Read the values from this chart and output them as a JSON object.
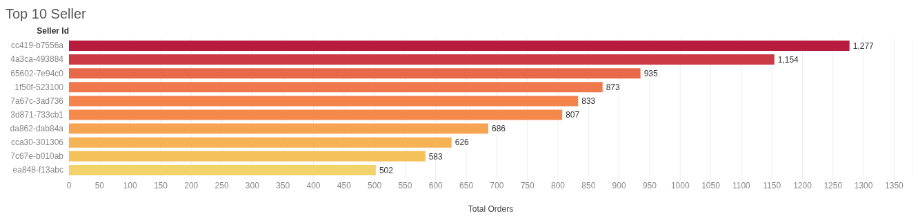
{
  "chart_data": {
    "type": "bar",
    "orientation": "horizontal",
    "title": "Top 10 Seller",
    "ylabel": "Seller Id",
    "xlabel": "Total Orders",
    "categories": [
      "cc419-b7556a",
      "4a3ca-493884",
      "65602-7e94c0",
      "1f50f-523100",
      "7a67c-3ad736",
      "3d871-733cb1",
      "da862-dab84a",
      "cca30-301306",
      "7c67e-b010ab",
      "ea848-f13abc"
    ],
    "values": [
      1277,
      1154,
      935,
      873,
      833,
      807,
      686,
      626,
      583,
      502
    ],
    "value_labels": [
      "1,277",
      "1,154",
      "935",
      "873",
      "833",
      "807",
      "686",
      "626",
      "583",
      "502"
    ],
    "colors": [
      "#b71c3f",
      "#cc3a45",
      "#e8684a",
      "#ef784c",
      "#f4834c",
      "#f5894c",
      "#f7a452",
      "#f6b356",
      "#f4c15a",
      "#f2d26a"
    ],
    "xlim": [
      0,
      1380
    ],
    "xticks": [
      0,
      50,
      100,
      150,
      200,
      250,
      300,
      350,
      400,
      450,
      500,
      550,
      600,
      650,
      700,
      750,
      800,
      850,
      900,
      950,
      1000,
      1050,
      1100,
      1150,
      1200,
      1250,
      1300,
      1350
    ],
    "grid": "x",
    "legend": false
  }
}
